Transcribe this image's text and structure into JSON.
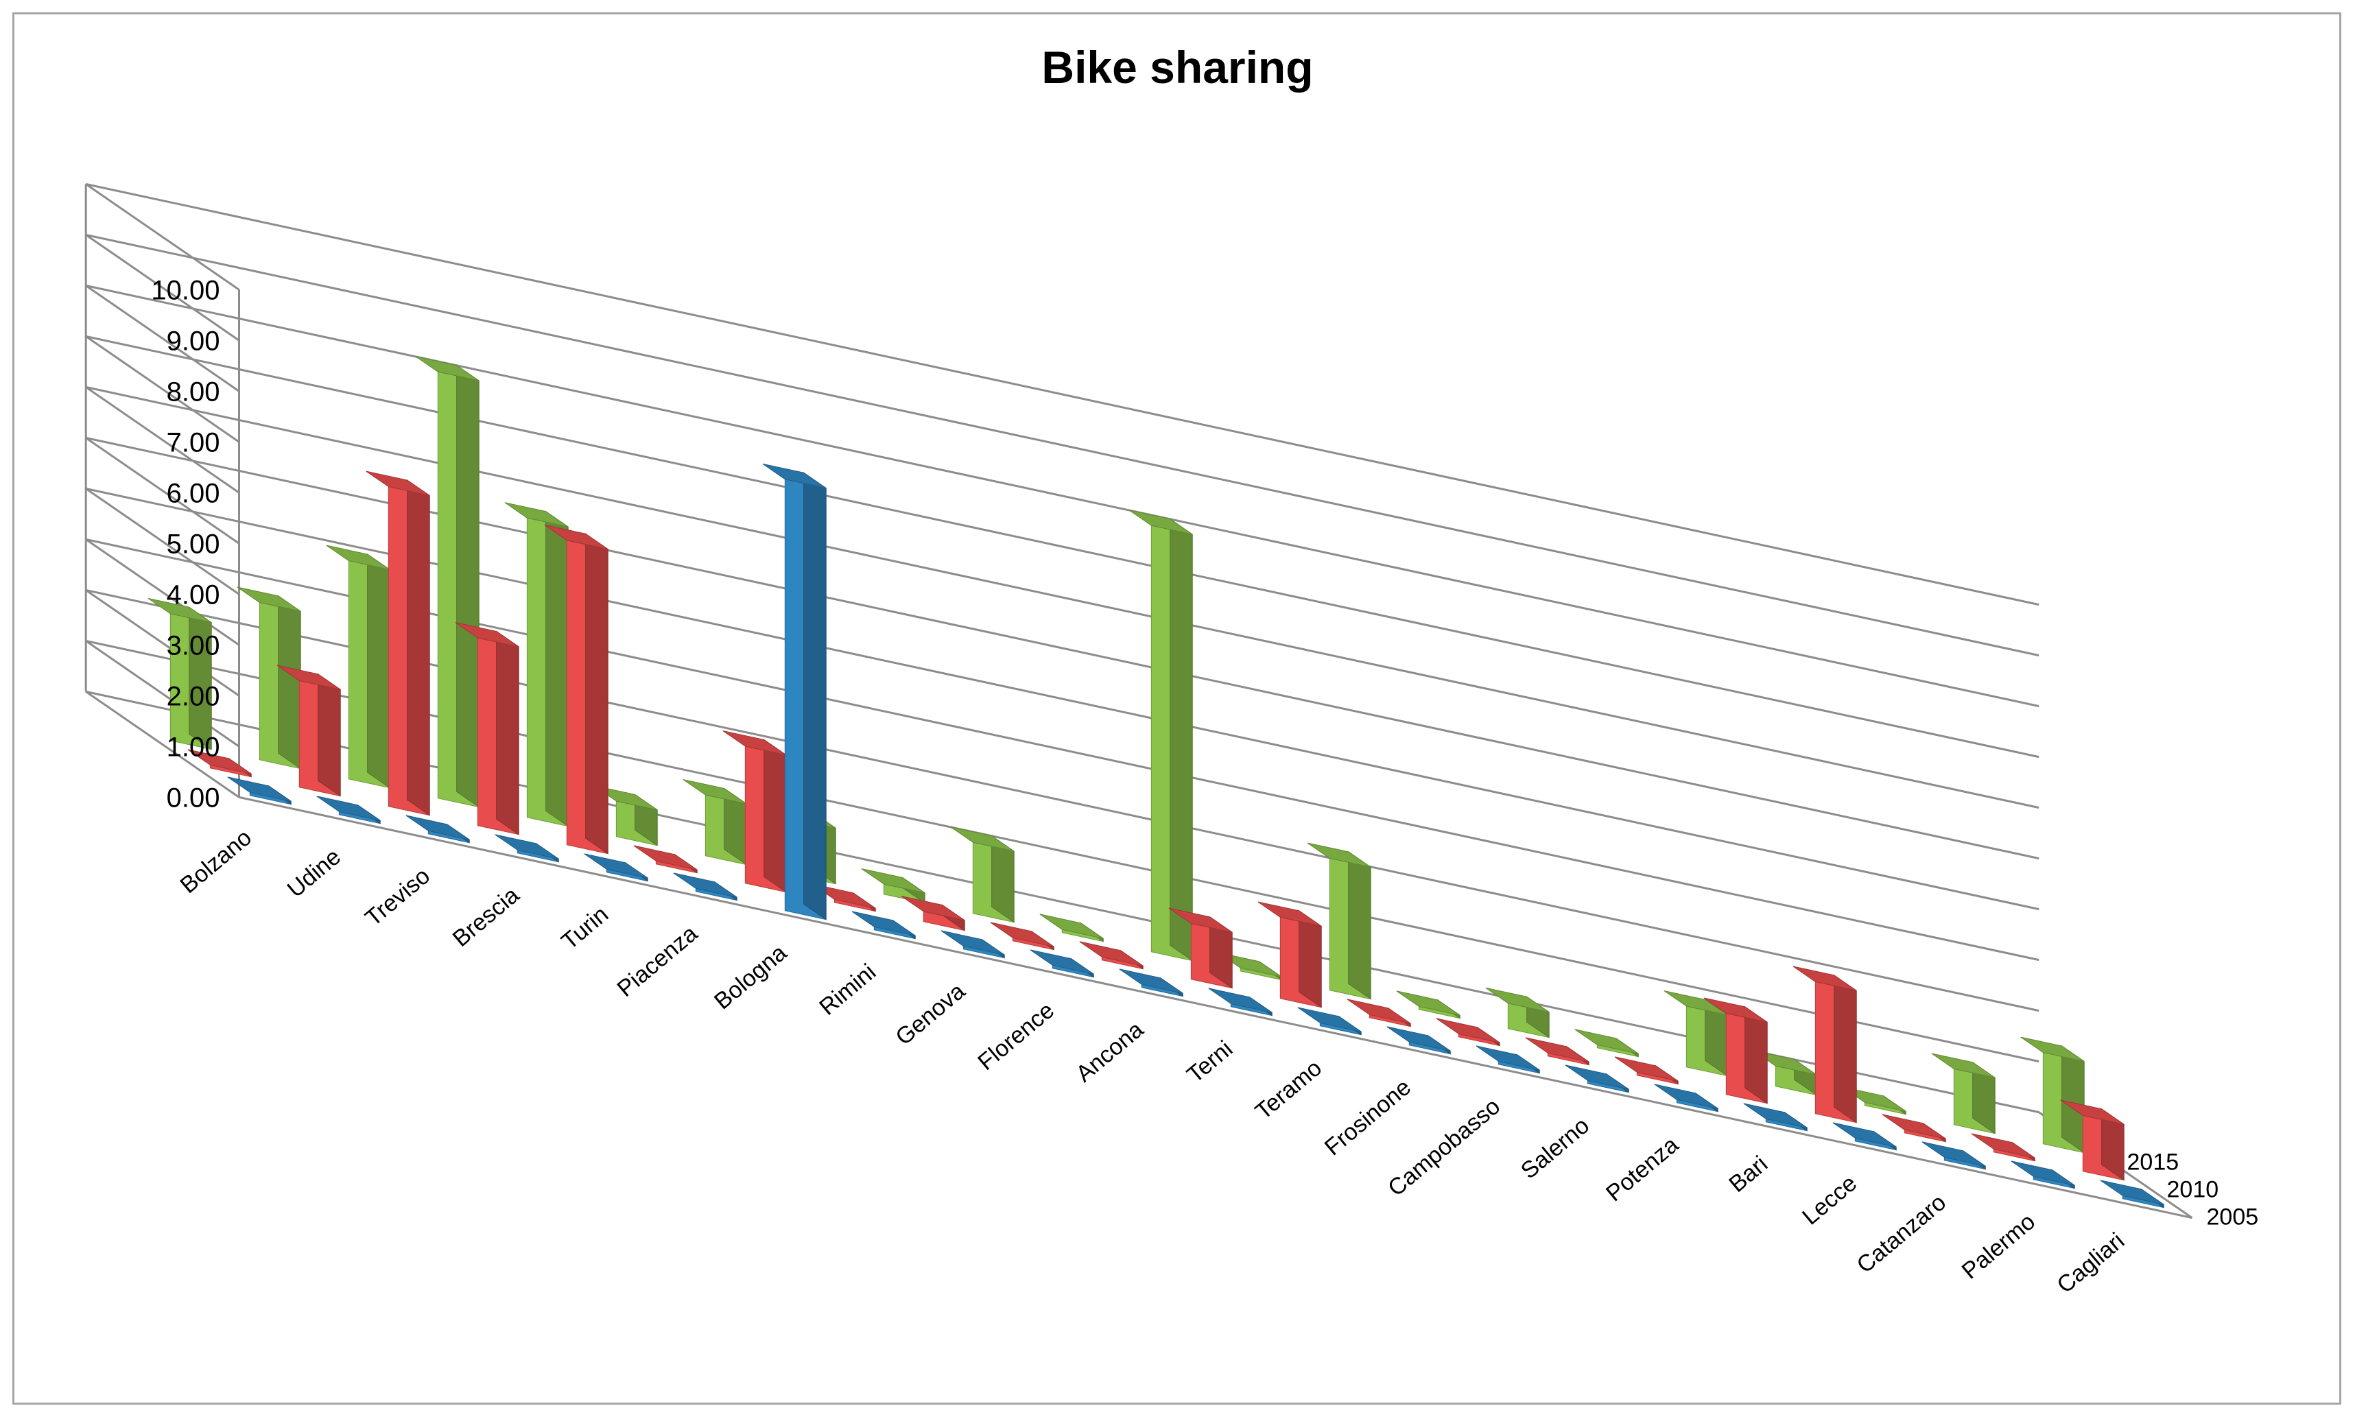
{
  "chart_data": {
    "type": "bar",
    "title": "Bike sharing",
    "xlabel": "",
    "ylabel": "",
    "ylim": [
      0,
      10
    ],
    "y_ticks": [
      "0.00",
      "1.00",
      "2.00",
      "3.00",
      "4.00",
      "5.00",
      "6.00",
      "7.00",
      "8.00",
      "9.00",
      "10.00"
    ],
    "grid": true,
    "categories": [
      "Bolzano",
      "Udine",
      "Treviso",
      "Brescia",
      "Turin",
      "Piacenza",
      "Bologna",
      "Rimini",
      "Genova",
      "Florence",
      "Ancona",
      "Terni",
      "Teramo",
      "Frosinone",
      "Campobasso",
      "Salerno",
      "Potenza",
      "Bari",
      "Lecce",
      "Catanzaro",
      "Palermo",
      "Cagliari"
    ],
    "series": [
      {
        "name": "2005",
        "color": "#2e86c1",
        "values": [
          0,
          0,
          0,
          0,
          0,
          0,
          8.5,
          0,
          0,
          0,
          0,
          0,
          0,
          0,
          0,
          0,
          0,
          0,
          0,
          0,
          0,
          0
        ]
      },
      {
        "name": "2010",
        "color": "#e84c4c",
        "values": [
          0,
          2.1,
          6.3,
          3.7,
          6.0,
          0,
          2.7,
          0,
          0.2,
          0,
          0,
          1.1,
          1.6,
          0,
          0,
          0,
          0,
          1.6,
          2.6,
          0,
          0,
          1.1
        ]
      },
      {
        "name": "2015",
        "color": "#8bc34a",
        "values": [
          2.5,
          3.1,
          4.3,
          8.4,
          5.9,
          0.7,
          1.2,
          1.1,
          0.2,
          1.4,
          0,
          8.4,
          0,
          2.6,
          0,
          0.5,
          0,
          1.2,
          0.4,
          0,
          1.1,
          1.8
        ]
      }
    ]
  }
}
